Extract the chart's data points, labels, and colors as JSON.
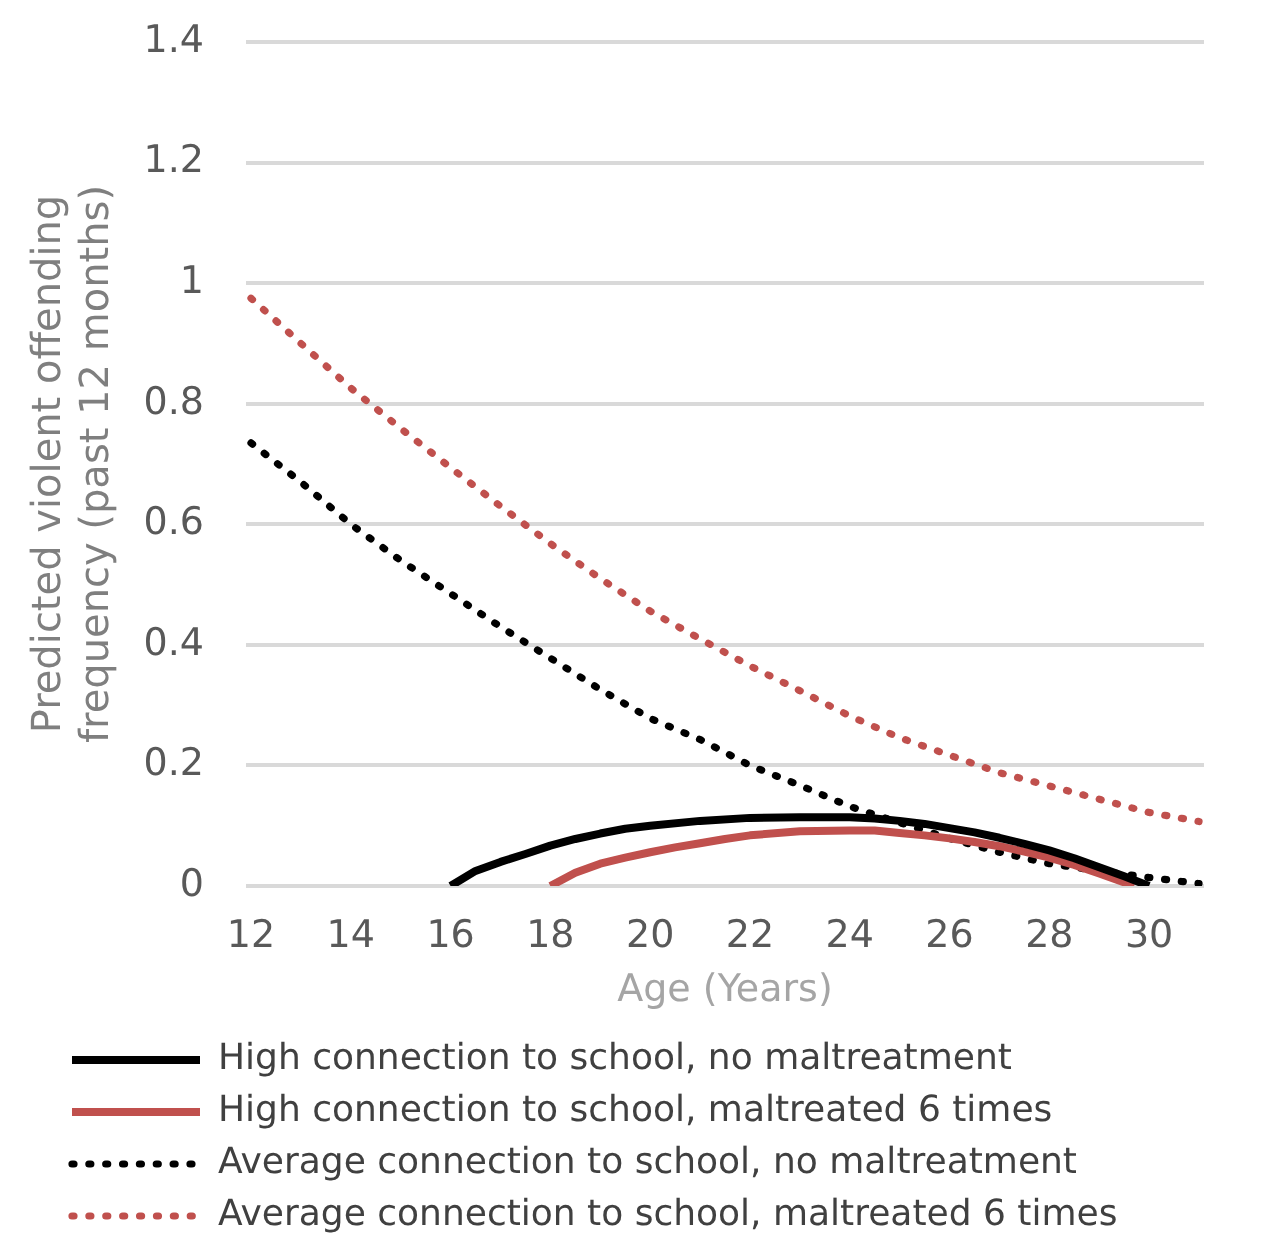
{
  "chart_data": {
    "type": "line",
    "xlabel": "Age (Years)",
    "ylabel": "Predicted violent offending frequency (past 12 months)",
    "xlim": [
      11.9,
      31.1
    ],
    "xticks": [
      12,
      14,
      16,
      18,
      20,
      22,
      24,
      26,
      28,
      30
    ],
    "ylim": [
      0,
      1.4
    ],
    "yticks": [
      0,
      0.2,
      0.4,
      0.6,
      0.8,
      1,
      1.2,
      1.4
    ],
    "grid": "y",
    "legend": "bottom",
    "marker": "none",
    "series": [
      {
        "name": "High connection to school, no maltreatment",
        "color": "#000000",
        "line_style": "solid",
        "x": [
          16,
          16.5,
          17,
          17.5,
          18,
          18.5,
          19,
          19.5,
          20,
          21,
          22,
          23,
          24,
          24.5,
          25,
          25.5,
          26,
          26.5,
          27,
          27.5,
          28,
          28.5,
          29,
          29.5,
          30
        ],
        "values": [
          0,
          0.025,
          0.04,
          0.053,
          0.067,
          0.078,
          0.087,
          0.095,
          0.1,
          0.108,
          0.113,
          0.114,
          0.114,
          0.112,
          0.108,
          0.103,
          0.096,
          0.089,
          0.08,
          0.07,
          0.059,
          0.046,
          0.031,
          0.016,
          0
        ]
      },
      {
        "name": "High connection to school, maltreated 6 times",
        "color": "#c0504d",
        "line_style": "solid",
        "x": [
          18,
          18.5,
          19,
          19.5,
          20,
          20.5,
          21,
          21.5,
          22,
          23,
          24,
          24.5,
          25,
          25.5,
          26,
          26.5,
          27,
          27.5,
          28,
          28.5,
          29,
          29.5,
          29.7
        ],
        "values": [
          0,
          0.022,
          0.037,
          0.047,
          0.056,
          0.064,
          0.071,
          0.078,
          0.084,
          0.091,
          0.092,
          0.092,
          0.088,
          0.084,
          0.079,
          0.073,
          0.066,
          0.057,
          0.047,
          0.035,
          0.021,
          0.006,
          0
        ]
      },
      {
        "name": "Average connection to school, no maltreatment",
        "color": "#000000",
        "line_style": "dotted",
        "x": [
          12,
          13,
          14,
          15,
          16,
          17,
          18,
          19,
          20,
          21,
          22,
          23,
          24,
          25,
          26,
          27,
          28,
          29,
          30,
          31
        ],
        "values": [
          0.735,
          0.67,
          0.6,
          0.54,
          0.485,
          0.43,
          0.378,
          0.326,
          0.278,
          0.243,
          0.2,
          0.167,
          0.132,
          0.105,
          0.079,
          0.056,
          0.037,
          0.025,
          0.014,
          0.004
        ]
      },
      {
        "name": "Average connection to school, maltreated 6 times",
        "color": "#c0504d",
        "line_style": "dotted",
        "x": [
          12,
          13,
          14,
          15,
          16,
          17,
          18,
          19,
          20,
          21,
          22,
          23,
          24,
          25,
          26,
          27,
          28,
          29,
          30,
          31
        ],
        "values": [
          0.975,
          0.9,
          0.826,
          0.759,
          0.694,
          0.63,
          0.568,
          0.51,
          0.456,
          0.41,
          0.365,
          0.324,
          0.282,
          0.246,
          0.217,
          0.188,
          0.166,
          0.144,
          0.122,
          0.107
        ]
      }
    ]
  }
}
